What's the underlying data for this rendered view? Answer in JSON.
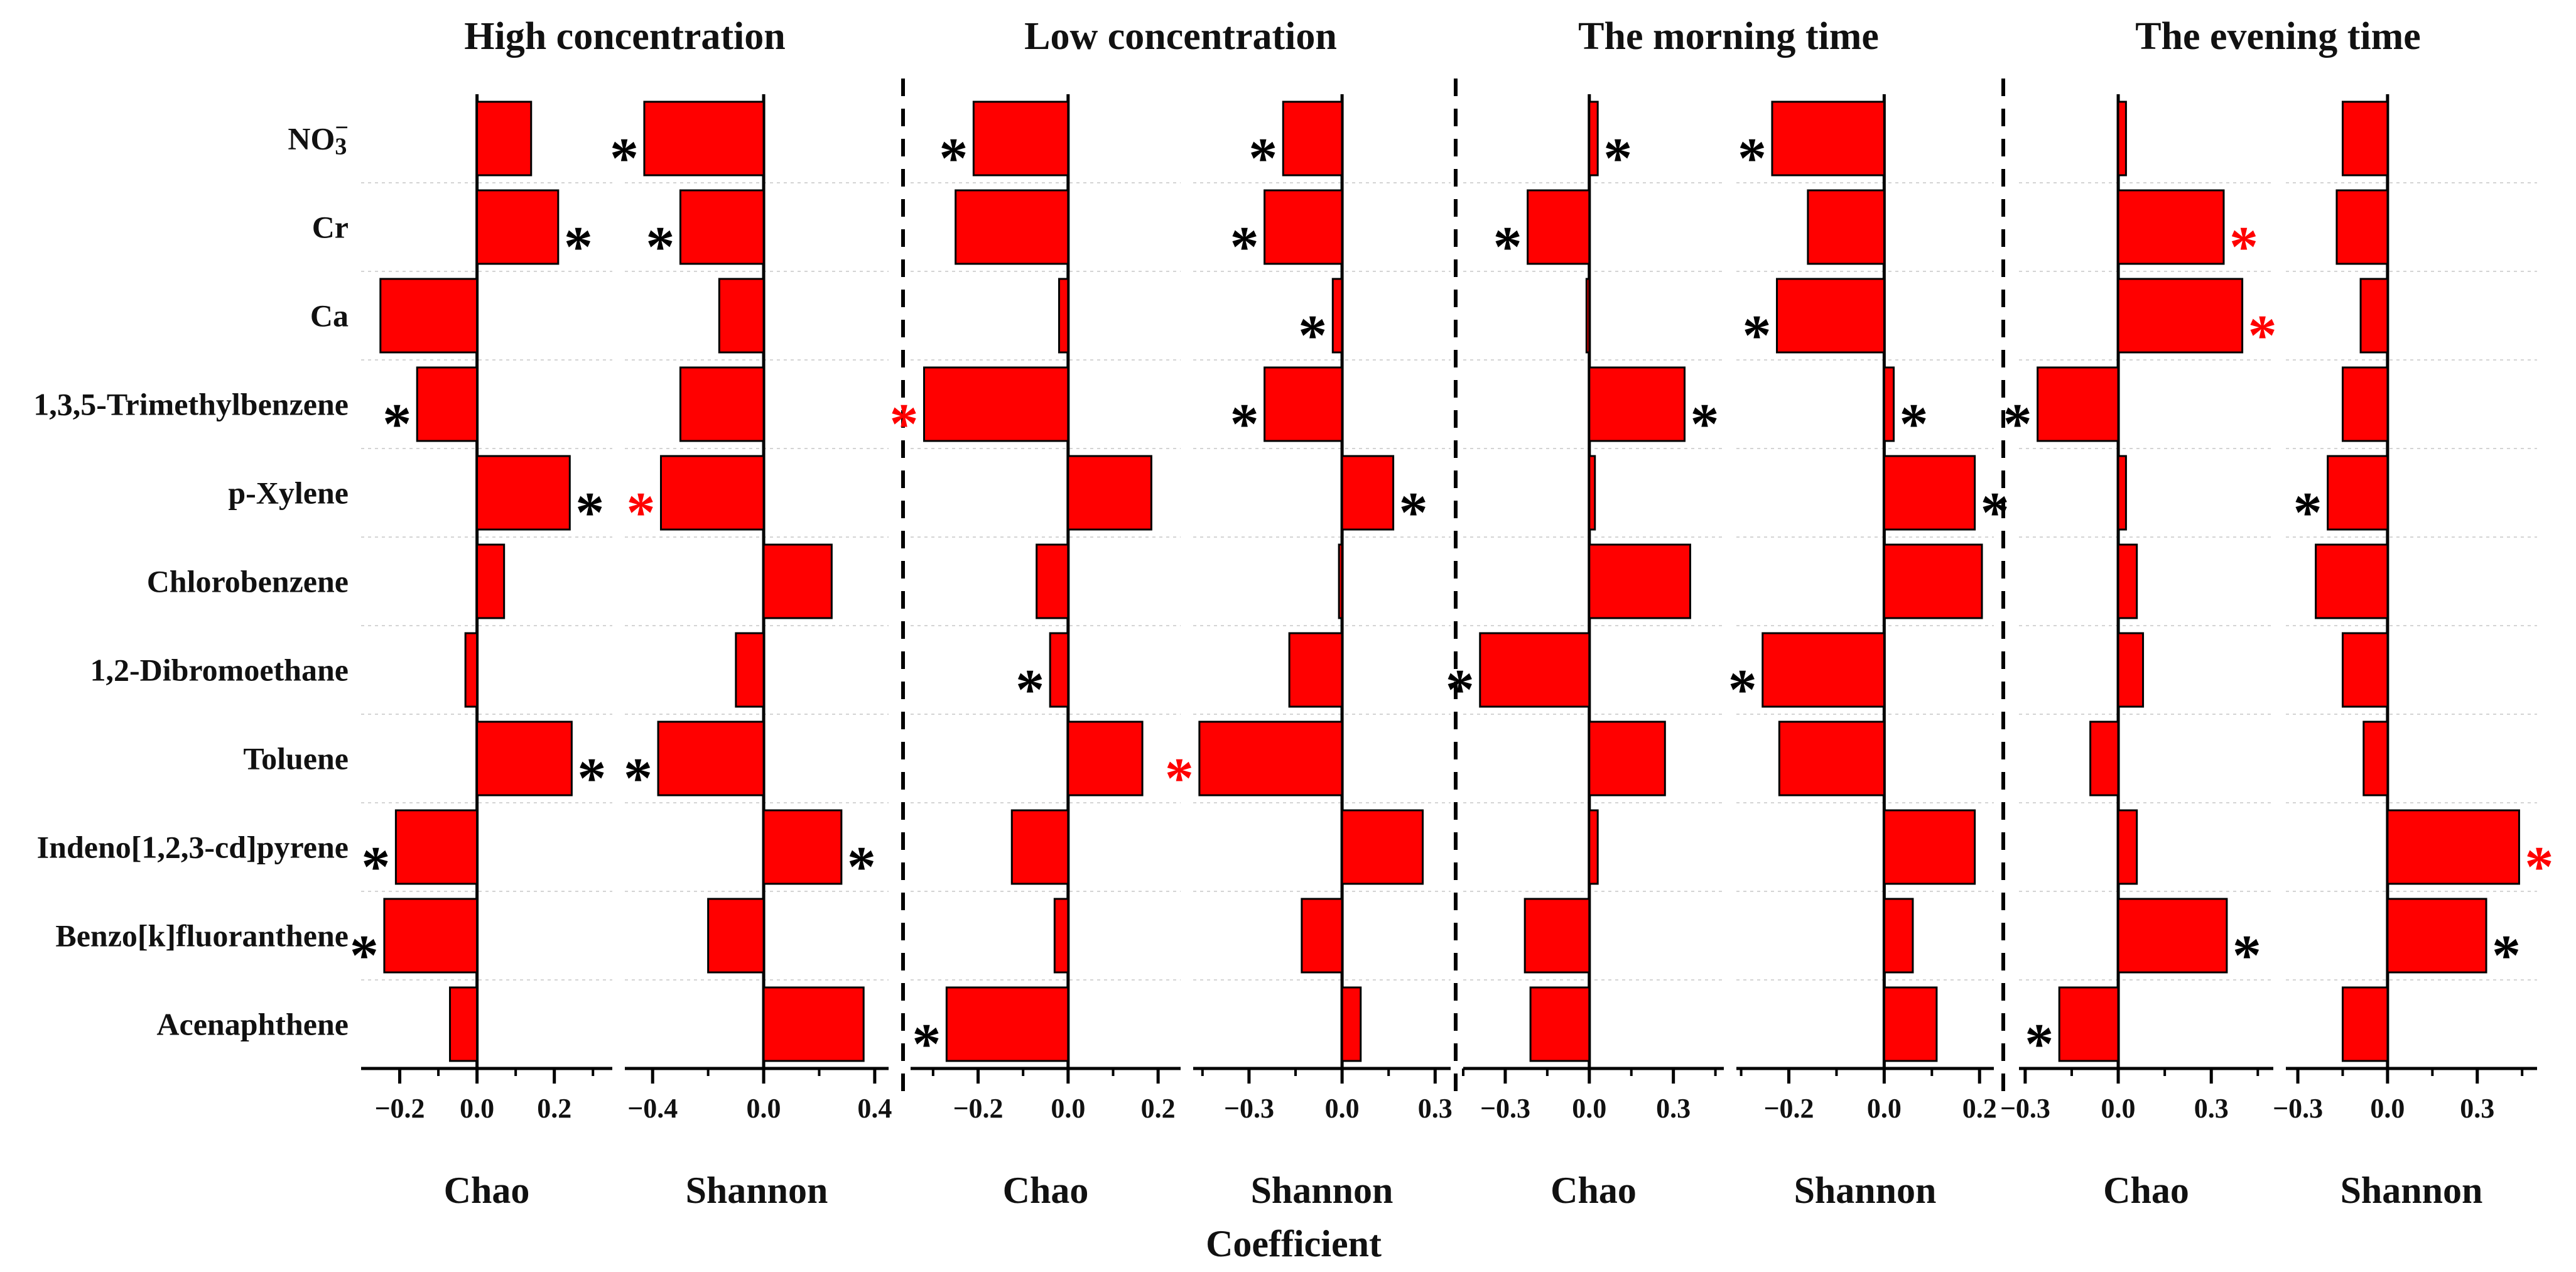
{
  "chart_data": {
    "type": "bar",
    "orientation": "horizontal",
    "xlabel": "Coefficient",
    "colors": {
      "bar": "#ff0000",
      "bar_edge": "#000000",
      "star_black": "#000000",
      "star_red": "#ff0000"
    },
    "categories": [
      "NO3̄",
      "Cr",
      "Ca",
      "1,3,5-Trimethylbenzene",
      "p-Xylene",
      "Chlorobenzene",
      "1,2-Dibromoethane",
      "Toluene",
      "Indeno[1,2,3-cd]pyrene",
      "Benzo[k]fluoranthene",
      "Acenaphthene"
    ],
    "groups": [
      {
        "title": "High concentration",
        "panels": [
          {
            "label": "Chao",
            "xlim": [
              -0.3,
              0.35
            ],
            "ticks": [
              -0.2,
              0.0,
              0.2
            ],
            "tick_labels": [
              "−0.2",
              "0.0",
              "0.2"
            ],
            "values": [
              0.14,
              0.21,
              -0.25,
              -0.155,
              0.24,
              0.07,
              -0.03,
              0.245,
              -0.21,
              -0.24,
              -0.07
            ],
            "stars": [
              "",
              "black",
              "",
              "black",
              "black",
              "",
              "",
              "black",
              "black",
              "black",
              ""
            ]
          },
          {
            "label": "Shannon",
            "xlim": [
              -0.5,
              0.45
            ],
            "ticks": [
              -0.4,
              0.0,
              0.4
            ],
            "tick_labels": [
              "−0.4",
              "0.0",
              "0.4"
            ],
            "values": [
              -0.43,
              -0.3,
              -0.16,
              -0.3,
              -0.37,
              0.245,
              -0.1,
              -0.38,
              0.28,
              -0.2,
              0.36
            ],
            "stars": [
              "black",
              "black",
              "",
              "",
              "red",
              "",
              "",
              "black",
              "black",
              "",
              ""
            ]
          }
        ]
      },
      {
        "title": "Low concentration",
        "panels": [
          {
            "label": "Chao",
            "xlim": [
              -0.35,
              0.25
            ],
            "ticks": [
              -0.2,
              0.0,
              0.2
            ],
            "tick_labels": [
              "−0.2",
              "0.0",
              "0.2"
            ],
            "values": [
              -0.21,
              -0.25,
              -0.02,
              -0.32,
              0.185,
              -0.07,
              -0.04,
              0.165,
              -0.125,
              -0.03,
              -0.27
            ],
            "stars": [
              "black",
              "",
              "",
              "red",
              "",
              "",
              "black",
              "",
              "",
              "",
              "black"
            ]
          },
          {
            "label": "Shannon",
            "xlim": [
              -0.48,
              0.35
            ],
            "ticks": [
              -0.3,
              0.0,
              0.3
            ],
            "tick_labels": [
              "−0.3",
              "0.0",
              "0.3"
            ],
            "values": [
              -0.19,
              -0.25,
              -0.03,
              -0.25,
              0.165,
              -0.01,
              -0.17,
              -0.46,
              0.26,
              -0.13,
              0.06
            ],
            "stars": [
              "black",
              "black",
              "black",
              "black",
              "black",
              "",
              "",
              "red",
              "",
              "",
              ""
            ]
          }
        ]
      },
      {
        "title": "The morning time",
        "panels": [
          {
            "label": "Chao",
            "xlim": [
              -0.45,
              0.48
            ],
            "ticks": [
              -0.3,
              0.0,
              0.3
            ],
            "tick_labels": [
              "−0.3",
              "0.0",
              "0.3"
            ],
            "values": [
              0.03,
              -0.22,
              -0.01,
              0.34,
              0.02,
              0.36,
              -0.39,
              0.27,
              0.03,
              -0.23,
              -0.21
            ],
            "stars": [
              "black",
              "black",
              "",
              "black",
              "",
              "",
              "black",
              "",
              "",
              "",
              ""
            ]
          },
          {
            "label": "Shannon",
            "xlim": [
              -0.31,
              0.23
            ],
            "ticks": [
              -0.2,
              0.0,
              0.2
            ],
            "tick_labels": [
              "−0.2",
              "0.0",
              "0.2"
            ],
            "values": [
              -0.235,
              -0.16,
              -0.225,
              0.02,
              0.19,
              0.205,
              -0.255,
              -0.22,
              0.19,
              0.06,
              0.11
            ],
            "stars": [
              "black",
              "",
              "black",
              "black",
              "black",
              "",
              "black",
              "",
              "",
              "",
              ""
            ]
          }
        ]
      },
      {
        "title": "The evening time",
        "panels": [
          {
            "label": "Chao",
            "xlim": [
              -0.32,
              0.5
            ],
            "ticks": [
              -0.3,
              0.0,
              0.3
            ],
            "tick_labels": [
              "−0.3",
              "0.0",
              "0.3"
            ],
            "values": [
              0.025,
              0.34,
              0.4,
              -0.26,
              0.025,
              0.06,
              0.08,
              -0.09,
              0.06,
              0.35,
              -0.19
            ],
            "stars": [
              "",
              "red",
              "red",
              "black",
              "",
              "",
              "",
              "",
              "",
              "black",
              "black"
            ]
          },
          {
            "label": "Shannon",
            "xlim": [
              -0.34,
              0.5
            ],
            "ticks": [
              -0.3,
              0.0,
              0.3
            ],
            "tick_labels": [
              "−0.3",
              "0.0",
              "0.3"
            ],
            "values": [
              -0.15,
              -0.17,
              -0.09,
              -0.15,
              -0.2,
              -0.24,
              -0.15,
              -0.08,
              0.44,
              0.33,
              -0.15
            ],
            "stars": [
              "",
              "",
              "",
              "",
              "black",
              "",
              "",
              "",
              "red",
              "black",
              ""
            ]
          }
        ]
      }
    ]
  }
}
